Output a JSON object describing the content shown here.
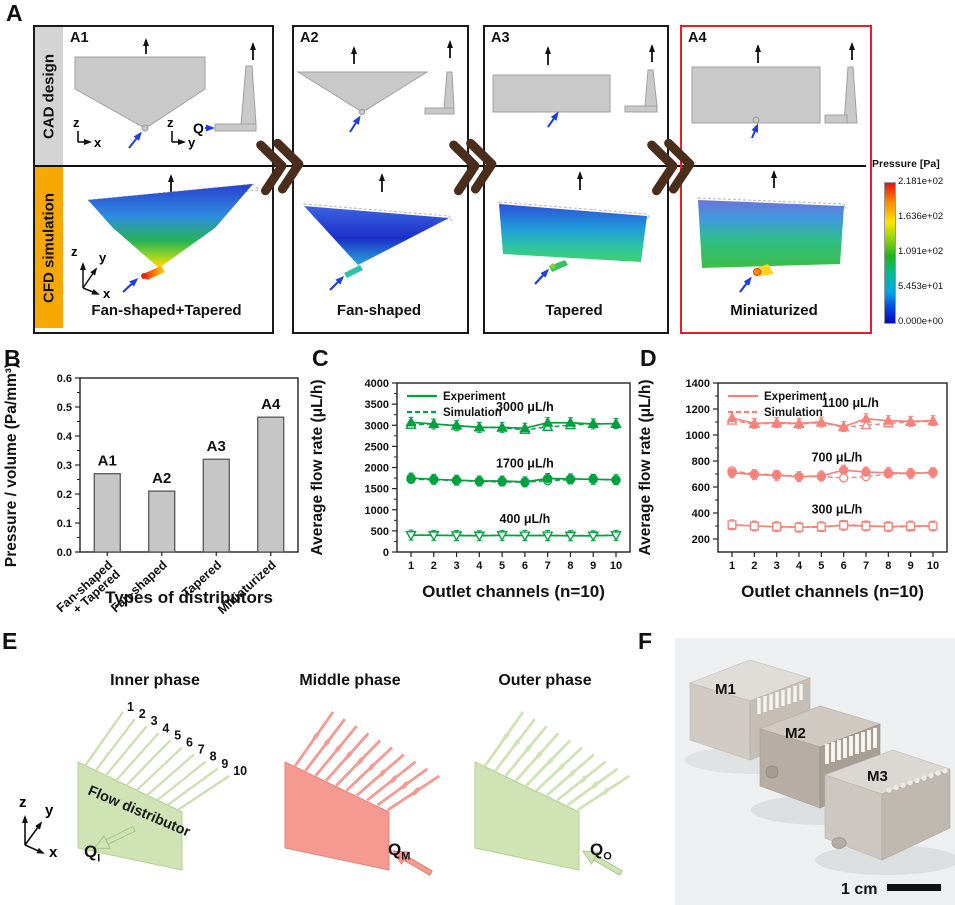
{
  "colors": {
    "accent_green": "#00a13f",
    "accent_salmon": "#f5837b",
    "bar_fill": "#c6c6c6",
    "cad_strip": "#d4d4d4",
    "cfd_strip": "#f7a800",
    "highlight_border": "#ed1c24",
    "chevron_brown": "#4b2d1b"
  },
  "panelA": {
    "label": "A",
    "cad_row_label": "CAD design",
    "cfd_row_label": "CFD simulation",
    "columns": [
      {
        "id": "A1",
        "cfd_label": "Fan-shaped+Tapered"
      },
      {
        "id": "A2",
        "cfd_label": "Fan-shaped"
      },
      {
        "id": "A3",
        "cfd_label": "Tapered"
      },
      {
        "id": "A4",
        "cfd_label": "Miniaturized"
      }
    ],
    "axes": {
      "z": "z",
      "x": "x",
      "y": "y"
    },
    "flow_label": "Q",
    "colorbar": {
      "title": "Pressure [Pa]",
      "ticks": [
        "2.181e+02",
        "1.636e+02",
        "1.091e+02",
        "5.453e+01",
        "0.000e+00"
      ]
    }
  },
  "panelB": {
    "label": "B"
  },
  "panelC": {
    "label": "C"
  },
  "panelD": {
    "label": "D"
  },
  "panelE": {
    "label": "E",
    "inner_title": "Inner phase",
    "middle_title": "Middle phase",
    "outer_title": "Outer phase",
    "body_text": "Flow distributor",
    "channel_numbers": [
      "1",
      "2",
      "3",
      "4",
      "5",
      "6",
      "7",
      "8",
      "9",
      "10"
    ],
    "axes": {
      "z": "z",
      "y": "y",
      "x": "x"
    },
    "q_labels": [
      {
        "base": "Q",
        "sub": "I"
      },
      {
        "base": "Q",
        "sub": "M"
      },
      {
        "base": "Q",
        "sub": "O"
      }
    ]
  },
  "panelF": {
    "label": "F",
    "items": [
      "M1",
      "M2",
      "M3"
    ],
    "scale_label": "1 cm"
  },
  "chart_data": [
    {
      "id": "B",
      "type": "bar",
      "title": "",
      "categories": [
        [
          "Fan-shaped",
          "+ Tapered"
        ],
        [
          "Fan-shaped"
        ],
        [
          "Tapered"
        ],
        [
          "Miniaturized"
        ]
      ],
      "bar_labels": [
        "A1",
        "A2",
        "A3",
        "A4"
      ],
      "values": [
        0.27,
        0.21,
        0.32,
        0.465
      ],
      "ylabel": "Pressure / volume (Pa/mm³)",
      "xlabel": "Types of distributors",
      "ylim": [
        0,
        0.6
      ],
      "yticks": [
        0,
        0.1,
        0.2,
        0.3,
        0.4,
        0.5,
        0.6
      ],
      "ytick_decimals": 1,
      "grid": false,
      "legend_position": "none"
    },
    {
      "id": "C",
      "type": "line",
      "x": [
        1,
        2,
        3,
        4,
        5,
        6,
        7,
        8,
        9,
        10
      ],
      "color": "#00a13f",
      "ylabel": "Average flow rate (μL/h)",
      "xlabel": "Outlet channels (n=10)",
      "ylim": [
        0,
        4000
      ],
      "yticks": [
        0,
        500,
        1000,
        1500,
        2000,
        2500,
        3000,
        3500,
        4000
      ],
      "ytick_decimals": 0,
      "grid": false,
      "legend": [
        "Experiment",
        "Simulation"
      ],
      "legend_position": "top-left",
      "groups": [
        {
          "label": "3000 μL/h",
          "marker": "triangle",
          "open": false,
          "label_x": 6,
          "label_y": 3340,
          "experiment": [
            3070,
            3030,
            2990,
            2950,
            2950,
            2930,
            3060,
            3060,
            3030,
            3040
          ],
          "simulation": [
            3010,
            3030,
            3000,
            2950,
            2940,
            2890,
            2960,
            3000,
            3040,
            3030
          ]
        },
        {
          "label": "1700 μL/h",
          "marker": "circle",
          "open": false,
          "label_x": 6,
          "label_y": 2000,
          "experiment": [
            1750,
            1720,
            1700,
            1680,
            1680,
            1660,
            1740,
            1730,
            1720,
            1710
          ],
          "simulation": [
            1720,
            1710,
            1690,
            1670,
            1660,
            1650,
            1690,
            1710,
            1730,
            1700
          ]
        },
        {
          "label": "400 μL/h",
          "marker": "triangle-down",
          "open": true,
          "label_x": 6,
          "label_y": 690,
          "experiment": [
            400,
            395,
            390,
            385,
            395,
            390,
            390,
            385,
            385,
            395
          ],
          "simulation": [
            400,
            400,
            395,
            390,
            395,
            385,
            390,
            390,
            390,
            395
          ]
        }
      ]
    },
    {
      "id": "D",
      "type": "line",
      "x": [
        1,
        2,
        3,
        4,
        5,
        6,
        7,
        8,
        9,
        10
      ],
      "color": "#f5837b",
      "ylabel": "Average flow rate (μL/h)",
      "xlabel": "Outlet channels (n=10)",
      "ylim": [
        100,
        1400
      ],
      "yticks": [
        200,
        400,
        600,
        800,
        1000,
        1200,
        1400
      ],
      "ytick_decimals": 0,
      "grid": false,
      "legend": [
        "Experiment",
        "Simulation"
      ],
      "legend_position": "top-left",
      "groups": [
        {
          "label": "1100 μL/h",
          "marker": "triangle",
          "open": false,
          "label_x": 6.3,
          "label_y": 1215,
          "experiment": [
            1130,
            1090,
            1095,
            1090,
            1100,
            1065,
            1125,
            1110,
            1105,
            1110
          ],
          "simulation": [
            1110,
            1085,
            1090,
            1085,
            1095,
            1060,
            1075,
            1090,
            1100,
            1105
          ]
        },
        {
          "label": "700 μL/h",
          "marker": "circle",
          "open": false,
          "label_x": 5.7,
          "label_y": 795,
          "experiment": [
            710,
            695,
            690,
            680,
            685,
            730,
            715,
            710,
            705,
            710
          ],
          "simulation": [
            725,
            700,
            695,
            680,
            680,
            670,
            680,
            700,
            705,
            715
          ]
        },
        {
          "label": "300 μL/h",
          "marker": "square",
          "open": true,
          "label_x": 5.7,
          "label_y": 395,
          "experiment": [
            310,
            300,
            295,
            290,
            295,
            305,
            300,
            295,
            300,
            300
          ],
          "simulation": [
            305,
            300,
            295,
            290,
            290,
            310,
            305,
            295,
            295,
            300
          ]
        }
      ]
    }
  ]
}
